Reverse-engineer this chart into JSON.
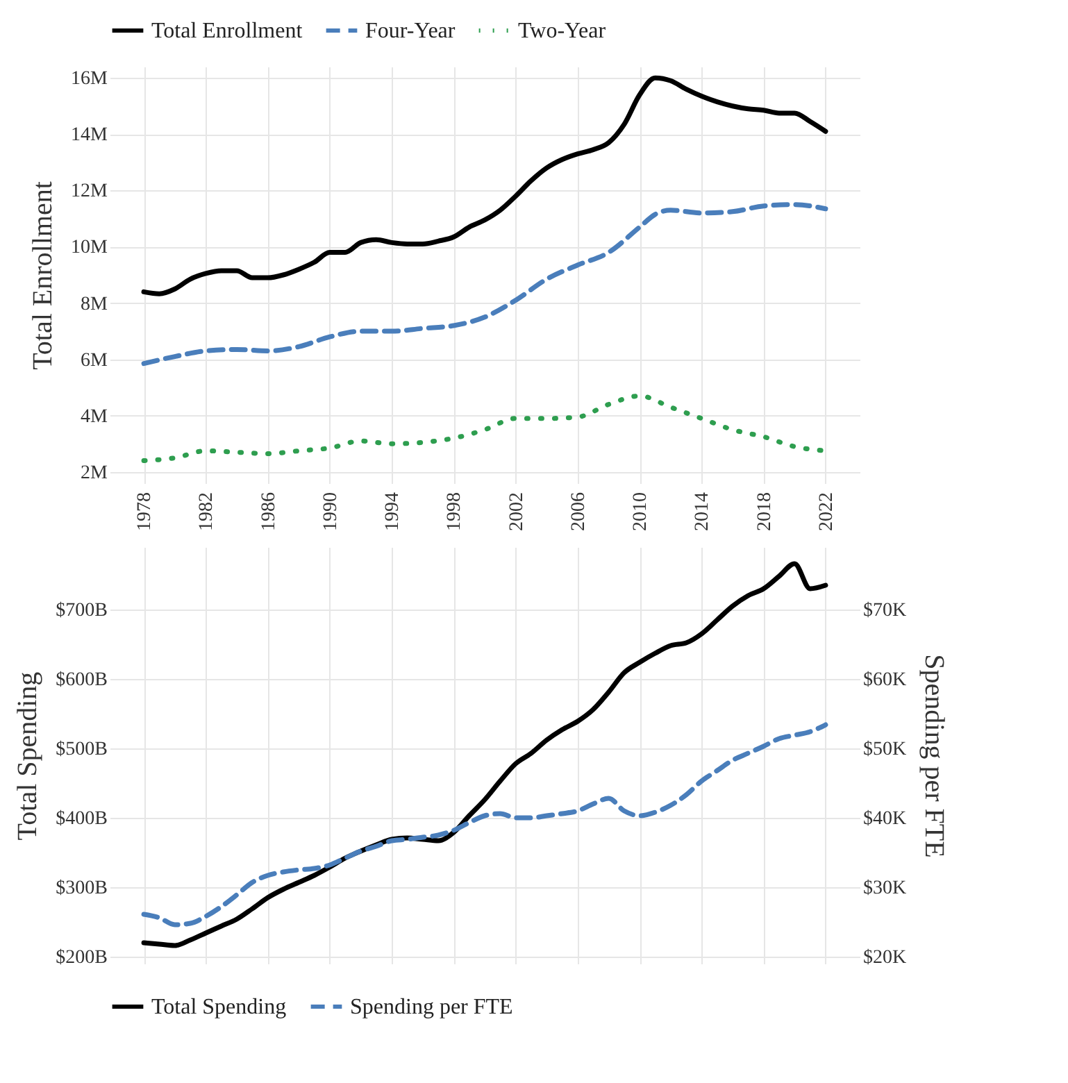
{
  "chart_data": [
    {
      "type": "line",
      "ylabel": "Total Enrollment",
      "xlim": [
        1975.8,
        2024.2
      ],
      "ylim": [
        1.6,
        16.4
      ],
      "xticks": [
        1978,
        1982,
        1986,
        1990,
        1994,
        1998,
        2002,
        2006,
        2010,
        2014,
        2018,
        2022
      ],
      "yticks": [
        {
          "value": 2,
          "label": "2M"
        },
        {
          "value": 4,
          "label": "4M"
        },
        {
          "value": 6,
          "label": "6M"
        },
        {
          "value": 8,
          "label": "8M"
        },
        {
          "value": 10,
          "label": "10M"
        },
        {
          "value": 12,
          "label": "12M"
        },
        {
          "value": 14,
          "label": "14M"
        },
        {
          "value": 16,
          "label": "16M"
        }
      ],
      "grid": true,
      "legend": "top",
      "x": [
        1978,
        1979,
        1980,
        1981,
        1982,
        1983,
        1984,
        1985,
        1986,
        1987,
        1988,
        1989,
        1990,
        1991,
        1992,
        1993,
        1994,
        1995,
        1996,
        1997,
        1998,
        1999,
        2000,
        2001,
        2002,
        2003,
        2004,
        2005,
        2006,
        2007,
        2008,
        2009,
        2010,
        2011,
        2012,
        2013,
        2014,
        2015,
        2016,
        2017,
        2018,
        2019,
        2020,
        2021,
        2022
      ],
      "series": [
        {
          "name": "Total Enrollment",
          "color": "#000000",
          "line_style": "solid",
          "values": [
            8.4,
            8.33,
            8.5,
            8.85,
            9.05,
            9.15,
            9.15,
            8.9,
            8.9,
            9.0,
            9.2,
            9.45,
            9.8,
            9.8,
            10.15,
            10.25,
            10.15,
            10.1,
            10.1,
            10.2,
            10.35,
            10.7,
            10.95,
            11.3,
            11.8,
            12.35,
            12.8,
            13.1,
            13.3,
            13.45,
            13.7,
            14.35,
            15.4,
            16.0,
            15.9,
            15.6,
            15.35,
            15.15,
            15.0,
            14.9,
            14.85,
            14.75,
            14.75,
            14.45,
            14.1
          ]
        },
        {
          "name": "Four-Year",
          "color": "#4a7ebb",
          "line_style": "dashed",
          "x": [
            1978,
            1980,
            1982,
            1984,
            1986,
            1988,
            1990,
            1992,
            1994,
            1996,
            1998,
            2000,
            2002,
            2004,
            2006,
            2008,
            2010,
            2011,
            2012,
            2014,
            2016,
            2018,
            2020,
            2022
          ],
          "values": [
            5.85,
            6.1,
            6.3,
            6.35,
            6.3,
            6.45,
            6.8,
            7.0,
            7.0,
            7.1,
            7.2,
            7.5,
            8.1,
            8.85,
            9.35,
            9.8,
            10.7,
            11.15,
            11.3,
            11.2,
            11.25,
            11.45,
            11.5,
            11.35
          ]
        },
        {
          "name": "Two-Year",
          "color": "#2e9e4f",
          "line_style": "dotted",
          "x": [
            1978,
            1980,
            1982,
            1984,
            1986,
            1988,
            1990,
            1992,
            1994,
            1996,
            1998,
            2000,
            2002,
            2004,
            2006,
            2008,
            2010,
            2012,
            2014,
            2016,
            2018,
            2020,
            2022
          ],
          "values": [
            2.4,
            2.5,
            2.75,
            2.7,
            2.65,
            2.75,
            2.85,
            3.1,
            3.0,
            3.05,
            3.2,
            3.5,
            3.9,
            3.9,
            3.95,
            4.4,
            4.7,
            4.3,
            3.9,
            3.5,
            3.25,
            2.9,
            2.75
          ]
        }
      ]
    },
    {
      "type": "line",
      "ylabel": "Total Spending",
      "y2label": "Spending per FTE",
      "xlim": [
        1975.8,
        2024.2
      ],
      "ylim": [
        190,
        790
      ],
      "y2lim": [
        19,
        79
      ],
      "yticks": [
        {
          "value": 200,
          "label": "$200B"
        },
        {
          "value": 300,
          "label": "$300B"
        },
        {
          "value": 400,
          "label": "$400B"
        },
        {
          "value": 500,
          "label": "$500B"
        },
        {
          "value": 600,
          "label": "$600B"
        },
        {
          "value": 700,
          "label": "$700B"
        }
      ],
      "y2ticks": [
        {
          "value": 20,
          "label": "$20K"
        },
        {
          "value": 30,
          "label": "$30K"
        },
        {
          "value": 40,
          "label": "$40K"
        },
        {
          "value": 50,
          "label": "$50K"
        },
        {
          "value": 60,
          "label": "$60K"
        },
        {
          "value": 70,
          "label": "$70K"
        }
      ],
      "xticks": [
        {
          "value": 1978,
          "label": null
        },
        {
          "value": 1982,
          "label": null
        },
        {
          "value": 1986,
          "label": null
        },
        {
          "value": 1990,
          "label": null
        },
        {
          "value": 1994,
          "label": null
        },
        {
          "value": 1998,
          "label": null
        },
        {
          "value": 2002,
          "label": null
        },
        {
          "value": 2006,
          "label": null
        },
        {
          "value": 2010,
          "label": null
        },
        {
          "value": 2014,
          "label": null
        },
        {
          "value": 2018,
          "label": null
        },
        {
          "value": 2022,
          "label": null
        }
      ],
      "tick_labels": "y",
      "grid": true,
      "legend": "bottom",
      "x": [
        1978,
        1979,
        1980,
        1981,
        1982,
        1983,
        1984,
        1985,
        1986,
        1987,
        1988,
        1989,
        1990,
        1991,
        1992,
        1993,
        1994,
        1995,
        1996,
        1997,
        1998,
        1999,
        2000,
        2001,
        2002,
        2003,
        2004,
        2005,
        2006,
        2007,
        2008,
        2009,
        2010,
        2011,
        2012,
        2013,
        2014,
        2015,
        2016,
        2017,
        2018,
        2019,
        2020,
        2021,
        2022
      ],
      "series": [
        {
          "name": "Total Spending",
          "color": "#000000",
          "line_style": "solid",
          "values": [
            220,
            218,
            216,
            224,
            234,
            244,
            254,
            269,
            285,
            297,
            307,
            317,
            329,
            342,
            352,
            361,
            369,
            371,
            369,
            367,
            379,
            403,
            426,
            453,
            478,
            493,
            512,
            527,
            539,
            556,
            581,
            609,
            624,
            637,
            648,
            652,
            665,
            685,
            705,
            720,
            730,
            748,
            766,
            730,
            735
          ]
        },
        {
          "name": "Spending per FTE",
          "color": "#4a7ebb",
          "line_style": "dashed",
          "axis": "y2",
          "values": [
            26.1,
            25.6,
            24.6,
            24.8,
            25.8,
            27.2,
            28.9,
            30.7,
            31.7,
            32.2,
            32.5,
            32.7,
            33.2,
            34.2,
            35.2,
            35.9,
            36.7,
            36.9,
            37.2,
            37.5,
            38.2,
            39.3,
            40.3,
            40.6,
            40.0,
            40.0,
            40.3,
            40.6,
            41.0,
            42.0,
            42.8,
            41.0,
            40.3,
            40.8,
            41.8,
            43.3,
            45.3,
            46.8,
            48.3,
            49.3,
            50.3,
            51.4,
            51.9,
            52.4,
            53.4
          ]
        }
      ]
    }
  ]
}
